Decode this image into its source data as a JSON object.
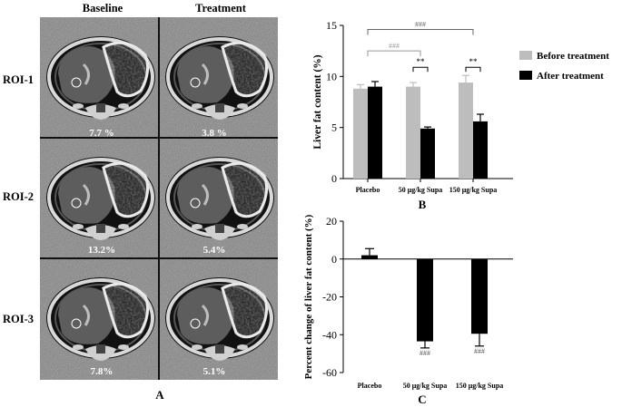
{
  "panel_a": {
    "label": "A",
    "col_headers": [
      "Baseline",
      "Treatment"
    ],
    "rows": [
      {
        "roi": "ROI-1",
        "baseline_pct": "7.7 %",
        "treatment_pct": "3.8 %"
      },
      {
        "roi": "ROI-2",
        "baseline_pct": "13.2%",
        "treatment_pct": "5.4%"
      },
      {
        "roi": "ROI-3",
        "baseline_pct": "7.8%",
        "treatment_pct": "5.1%"
      }
    ]
  },
  "chart_data": [
    {
      "panel_label": "B",
      "type": "bar",
      "categories": [
        "Placebo",
        "50 μg/kg Supa",
        "150 μg/kg Supa"
      ],
      "series": [
        {
          "name": "Before treatment",
          "color": "#bdbdbd",
          "values": [
            8.8,
            9.0,
            9.4
          ],
          "errors": [
            0.4,
            0.4,
            0.7
          ]
        },
        {
          "name": "After treatment",
          "color": "#000000",
          "values": [
            9.0,
            4.9,
            5.6
          ],
          "errors": [
            0.5,
            0.15,
            0.7
          ]
        }
      ],
      "ylabel": "Liver fat content (%)",
      "yticks": [
        0,
        5,
        10,
        15
      ],
      "ylim": [
        0,
        15
      ],
      "legend": "right",
      "annotations": [
        {
          "type": "bracket",
          "from": "Placebo",
          "to": "50 μg/kg Supa",
          "y": 12.5,
          "text": "###",
          "color": "#999999"
        },
        {
          "type": "bracket",
          "from": "Placebo",
          "to": "150 μg/kg Supa",
          "y": 14.6,
          "text": "###",
          "color": "#666666"
        },
        {
          "type": "pair",
          "category": "50 μg/kg Supa",
          "y": 10.9,
          "text": "**"
        },
        {
          "type": "pair",
          "category": "150 μg/kg Supa",
          "y": 10.9,
          "text": "**"
        }
      ]
    },
    {
      "panel_label": "C",
      "type": "bar",
      "categories": [
        "Placebo",
        "50 μg/kg Supa",
        "150 μg/kg Supa"
      ],
      "series": [
        {
          "name": "",
          "color": "#000000",
          "values": [
            2.0,
            -43.5,
            -39.5
          ],
          "errors": [
            3.5,
            3.5,
            6.5
          ]
        }
      ],
      "ylabel": "Percent change of liver fat content (%)",
      "yticks": [
        20,
        0,
        -20,
        -40,
        -60
      ],
      "ylim": [
        -60,
        20
      ],
      "annotations": [
        {
          "category": "50 μg/kg Supa",
          "text": "###"
        },
        {
          "category": "150 μg/kg Supa",
          "text": "###"
        }
      ]
    }
  ]
}
